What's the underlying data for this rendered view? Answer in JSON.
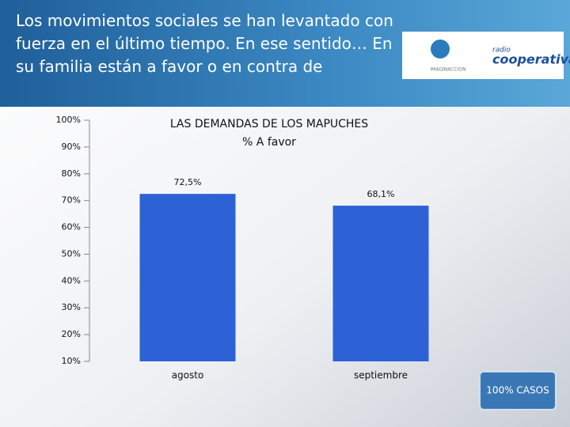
{
  "header": {
    "question": "Los movimientos sociales se han levantado con fuerza en el último tiempo. En ese sentido… En su familia están a favor o en contra de",
    "logo_left": "IMAGINACCION",
    "logo_right_top": "radio",
    "logo_right": "cooperativa"
  },
  "chart_data": {
    "type": "bar",
    "title": "LAS DEMANDAS DE LOS MAPUCHES",
    "subtitle": "% A favor",
    "categories": [
      "agosto",
      "septiembre"
    ],
    "values": [
      72.5,
      68.1
    ],
    "value_labels": [
      "72,5%",
      "68,1%"
    ],
    "color": "#2c62d6",
    "ylim": [
      10,
      100
    ],
    "yticks": [
      {
        "value": 10,
        "label": "10%"
      },
      {
        "value": 20,
        "label": "20%"
      },
      {
        "value": 30,
        "label": "30%"
      },
      {
        "value": 40,
        "label": "40%"
      },
      {
        "value": 50,
        "label": "50%"
      },
      {
        "value": 60,
        "label": "60%"
      },
      {
        "value": 70,
        "label": "70%"
      },
      {
        "value": 80,
        "label": "80%"
      },
      {
        "value": 90,
        "label": "90%"
      },
      {
        "value": 100,
        "label": "100%"
      }
    ],
    "grid": false
  },
  "footer": "100% CASOS"
}
